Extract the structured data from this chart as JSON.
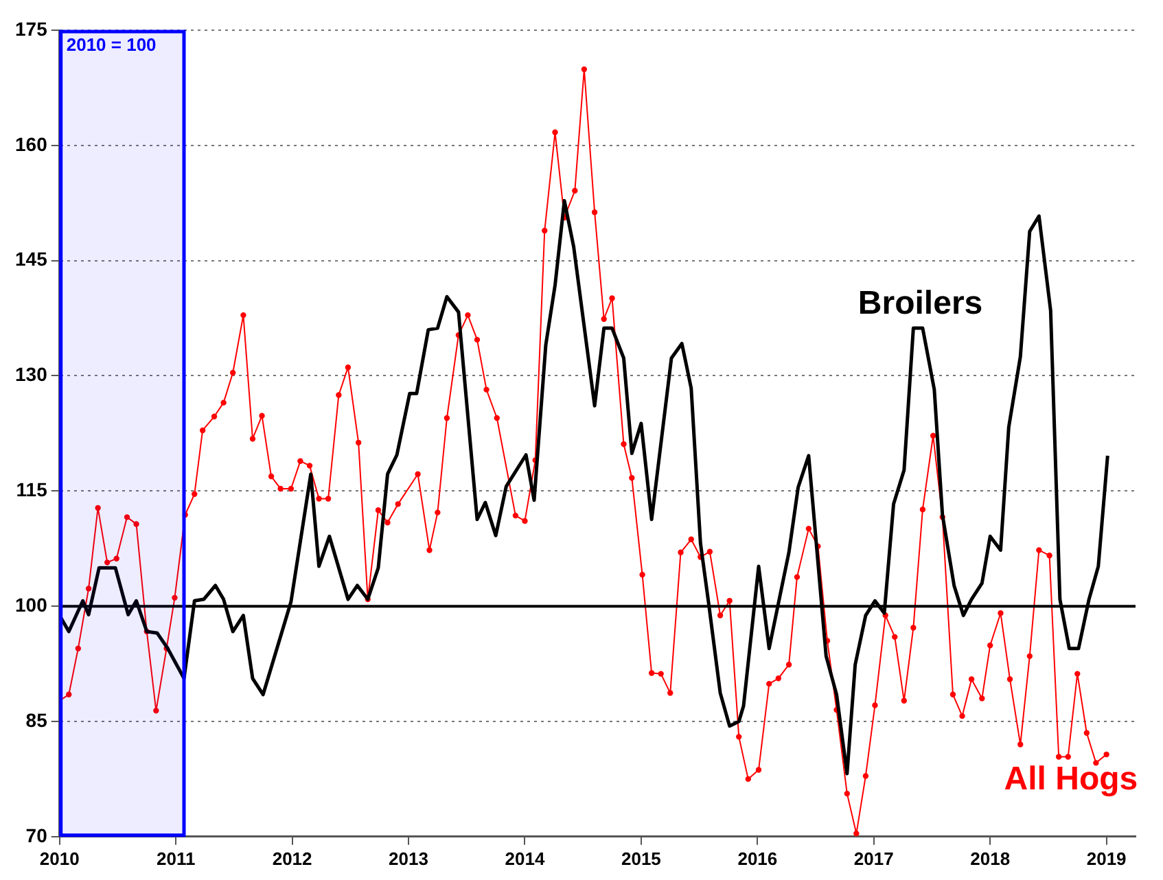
{
  "chart_data": {
    "type": "line",
    "xlim": [
      2010,
      2019.25
    ],
    "xticks": [
      2010,
      2011,
      2012,
      2013,
      2014,
      2015,
      2016,
      2017,
      2018,
      2019
    ],
    "ylim": [
      70,
      175
    ],
    "yticks": [
      70,
      85,
      100,
      115,
      130,
      145,
      160,
      175
    ],
    "grid": "y",
    "legend": false,
    "ref_lines": [
      {
        "axis": "y",
        "value": 100,
        "color": "#000000"
      }
    ],
    "bands": [
      {
        "axis": "x",
        "from": 2010,
        "to": 2011.07,
        "label": "2010 = 100",
        "color": "#0000ff"
      }
    ],
    "series": [
      {
        "name": "Broilers",
        "color": "#000000",
        "marker": "none",
        "x": [
          2010.0,
          2010.08,
          2010.2,
          2010.25,
          2010.34,
          2010.48,
          2010.59,
          2010.66,
          2010.75,
          2010.84,
          2010.93,
          2011.07,
          2011.16,
          2011.24,
          2011.34,
          2011.41,
          2011.49,
          2011.58,
          2011.66,
          2011.75,
          2011.99,
          2012.16,
          2012.23,
          2012.32,
          2012.48,
          2012.56,
          2012.65,
          2012.74,
          2012.82,
          2012.9,
          2013.01,
          2013.07,
          2013.17,
          2013.25,
          2013.33,
          2013.43,
          2013.59,
          2013.66,
          2013.75,
          2013.84,
          2014.01,
          2014.08,
          2014.18,
          2014.26,
          2014.34,
          2014.42,
          2014.6,
          2014.68,
          2014.75,
          2014.85,
          2014.92,
          2015.0,
          2015.09,
          2015.26,
          2015.35,
          2015.43,
          2015.51,
          2015.58,
          2015.68,
          2015.76,
          2015.84,
          2015.88,
          2016.01,
          2016.1,
          2016.27,
          2016.35,
          2016.44,
          2016.59,
          2016.68,
          2016.77,
          2016.84,
          2016.93,
          2017.01,
          2017.09,
          2017.17,
          2017.26,
          2017.34,
          2017.42,
          2017.52,
          2017.59,
          2017.69,
          2017.77,
          2017.84,
          2017.93,
          2018.0,
          2018.09,
          2018.16,
          2018.26,
          2018.34,
          2018.42,
          2018.52,
          2018.6,
          2018.68,
          2018.76,
          2018.85,
          2018.93,
          2019.01
        ],
        "values": [
          98.8,
          96.7,
          100.7,
          98.9,
          105,
          105,
          98.9,
          100.7,
          96.7,
          96.5,
          94.5,
          90.6,
          100.7,
          100.9,
          102.7,
          100.9,
          96.7,
          98.8,
          90.6,
          88.5,
          100.6,
          117.2,
          105.2,
          109.1,
          100.9,
          102.7,
          100.9,
          105,
          117.2,
          119.7,
          127.7,
          127.7,
          136,
          136.2,
          140.3,
          138.3,
          111.3,
          113.5,
          109.2,
          115.6,
          119.7,
          113.8,
          134,
          141.8,
          152.8,
          146.8,
          126.1,
          136.2,
          136.2,
          132.3,
          119.9,
          123.8,
          111.3,
          132.3,
          134.2,
          128.4,
          108.2,
          100.4,
          88.7,
          84.4,
          85,
          87,
          105.2,
          94.5,
          107,
          115.5,
          119.6,
          93.5,
          88.5,
          78.2,
          92.4,
          98.8,
          100.7,
          99.1,
          113.3,
          117.7,
          136.2,
          136.2,
          128.2,
          111.9,
          102.7,
          98.8,
          100.9,
          103,
          109.1,
          107.3,
          123.3,
          132.5,
          148.8,
          150.8,
          138.5,
          100.9,
          94.5,
          94.5,
          100.9,
          105.2,
          119.6
        ]
      },
      {
        "name": "All Hogs",
        "color": "#ff0000",
        "marker": "circle",
        "x": [
          2010.0,
          2010.08,
          2010.16,
          2010.25,
          2010.33,
          2010.41,
          2010.49,
          2010.58,
          2010.66,
          2010.75,
          2010.83,
          2010.92,
          2010.99,
          2011.08,
          2011.16,
          2011.23,
          2011.33,
          2011.41,
          2011.49,
          2011.58,
          2011.66,
          2011.74,
          2011.82,
          2011.9,
          2011.99,
          2012.07,
          2012.15,
          2012.23,
          2012.31,
          2012.4,
          2012.48,
          2012.57,
          2012.65,
          2012.74,
          2012.82,
          2012.91,
          2013.08,
          2013.18,
          2013.25,
          2013.33,
          2013.43,
          2013.51,
          2013.59,
          2013.67,
          2013.76,
          2013.92,
          2014.0,
          2014.09,
          2014.17,
          2014.26,
          2014.34,
          2014.43,
          2014.51,
          2014.6,
          2014.68,
          2014.75,
          2014.85,
          2014.92,
          2015.01,
          2015.09,
          2015.17,
          2015.25,
          2015.34,
          2015.43,
          2015.51,
          2015.59,
          2015.68,
          2015.76,
          2015.84,
          2015.92,
          2016.01,
          2016.1,
          2016.18,
          2016.27,
          2016.34,
          2016.44,
          2016.52,
          2016.6,
          2016.68,
          2016.77,
          2016.85,
          2016.93,
          2017.01,
          2017.1,
          2017.18,
          2017.26,
          2017.34,
          2017.42,
          2017.51,
          2017.59,
          2017.68,
          2017.76,
          2017.84,
          2017.93,
          2018.0,
          2018.09,
          2018.17,
          2018.26,
          2018.34,
          2018.42,
          2018.51,
          2018.59,
          2018.67,
          2018.75,
          2018.83,
          2018.91,
          2019.0
        ],
        "values": [
          87.7,
          88.5,
          94.5,
          102.3,
          112.8,
          105.7,
          106.2,
          111.6,
          110.7,
          96.7,
          86.4,
          94.5,
          101.1,
          111.9,
          114.6,
          122.9,
          124.7,
          126.5,
          130.4,
          137.9,
          121.8,
          124.8,
          116.9,
          115.3,
          115.3,
          118.9,
          118.3,
          114,
          114,
          127.5,
          131.1,
          121.3,
          100.9,
          112.5,
          110.9,
          113.3,
          117.2,
          107.3,
          112.2,
          124.5,
          135.3,
          137.9,
          134.7,
          128.2,
          124.5,
          111.8,
          111.1,
          119,
          148.9,
          161.7,
          150.6,
          154.1,
          169.9,
          151.3,
          137.4,
          140.1,
          121.1,
          116.7,
          104.1,
          91.3,
          91.2,
          88.7,
          107,
          108.7,
          106.4,
          107.1,
          98.8,
          100.7,
          83,
          77.5,
          78.7,
          89.9,
          90.6,
          92.4,
          103.8,
          110.1,
          107.8,
          95.5,
          86.5,
          75.6,
          70.4,
          77.9,
          87.1,
          98.8,
          96,
          87.7,
          97.2,
          112.6,
          122.2,
          111.6,
          88.5,
          85.7,
          90.5,
          88,
          94.9,
          99.1,
          90.5,
          82,
          93.5,
          107.3,
          106.6,
          80.4,
          80.4,
          91.2,
          83.5,
          79.6,
          80.7
        ]
      }
    ]
  }
}
